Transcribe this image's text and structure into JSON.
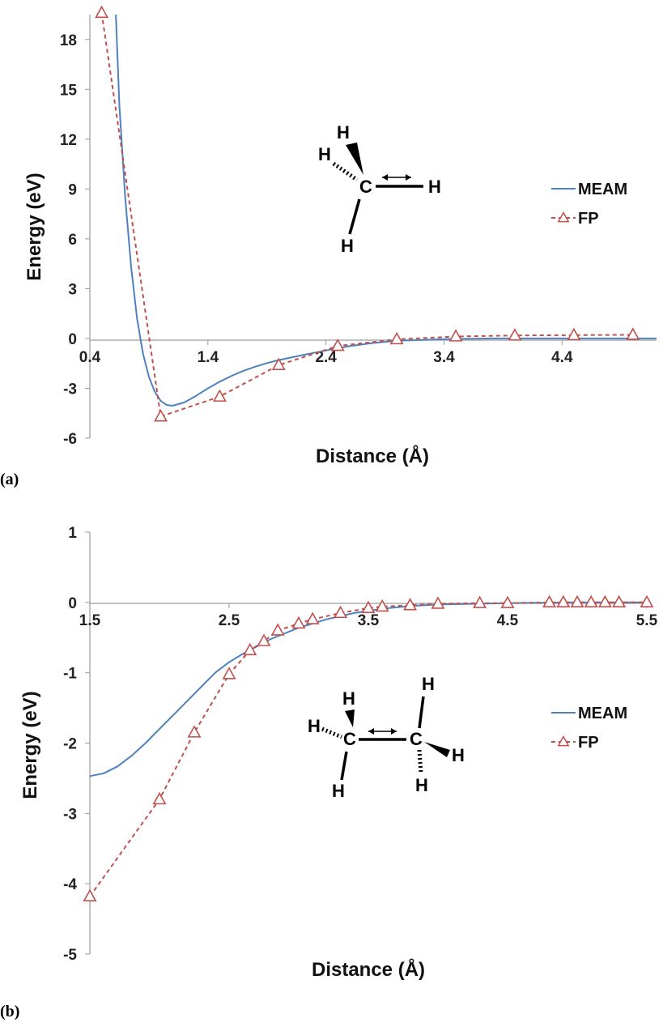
{
  "chart_data": [
    {
      "type": "line",
      "panel_label": "(a)",
      "xlabel": "Distance (Å)",
      "ylabel": "Energy (eV)",
      "xlim": [
        0.4,
        5.2
      ],
      "ylim": [
        -6,
        19.5
      ],
      "x_ticks": [
        "0.4",
        "1.4",
        "2.4",
        "3.4",
        "4.4"
      ],
      "y_ticks": [
        "-6",
        "-3",
        "0",
        "3",
        "6",
        "9",
        "12",
        "15",
        "18"
      ],
      "grid": false,
      "legend_position": "right",
      "molecule": {
        "atoms": [
          "H",
          "H",
          "C",
          "H",
          "H"
        ]
      },
      "series": [
        {
          "name": "MEAM",
          "color": "#4f81bd",
          "style": "solid",
          "x": [
            0.62,
            0.65,
            0.7,
            0.75,
            0.8,
            0.85,
            0.9,
            0.95,
            1.0,
            1.05,
            1.1,
            1.2,
            1.3,
            1.4,
            1.5,
            1.6,
            1.7,
            1.8,
            1.9,
            2.0,
            2.2,
            2.4,
            2.6,
            2.8,
            3.0,
            3.4,
            3.8,
            4.4,
            5.2
          ],
          "y": [
            19.5,
            14.0,
            8.4,
            4.3,
            1.2,
            -0.9,
            -2.3,
            -3.2,
            -3.75,
            -4.0,
            -4.05,
            -3.85,
            -3.45,
            -3.0,
            -2.6,
            -2.25,
            -1.95,
            -1.7,
            -1.48,
            -1.3,
            -1.0,
            -0.72,
            -0.46,
            -0.27,
            -0.14,
            -0.04,
            0.0,
            0.0,
            0.0
          ]
        },
        {
          "name": "FP",
          "color": "#c0504d",
          "style": "dashed",
          "marker": "triangle",
          "x": [
            0.5,
            1.0,
            1.5,
            2.0,
            2.5,
            3.0,
            3.5,
            4.0,
            4.5,
            5.0
          ],
          "y": [
            19.6,
            -4.7,
            -3.5,
            -1.6,
            -0.45,
            -0.05,
            0.12,
            0.18,
            0.2,
            0.22
          ]
        }
      ]
    },
    {
      "type": "line",
      "panel_label": "(b)",
      "xlabel": "Distance (Å)",
      "ylabel": "Energy (eV)",
      "xlim": [
        1.5,
        5.5
      ],
      "ylim": [
        -5,
        1
      ],
      "x_ticks": [
        "1.5",
        "2.5",
        "3.5",
        "4.5",
        "5.5"
      ],
      "y_ticks": [
        "-5",
        "-4",
        "-3",
        "-2",
        "-1",
        "0",
        "1"
      ],
      "grid": false,
      "legend_position": "right",
      "molecule": {
        "atoms": [
          "H",
          "H",
          "C",
          "H",
          "C",
          "H",
          "H",
          "H"
        ]
      },
      "series": [
        {
          "name": "MEAM",
          "color": "#4f81bd",
          "style": "solid",
          "x": [
            1.5,
            1.6,
            1.7,
            1.8,
            1.9,
            2.0,
            2.1,
            2.2,
            2.3,
            2.4,
            2.5,
            2.6,
            2.8,
            3.0,
            3.2,
            3.4,
            3.6,
            3.8,
            4.0,
            4.5,
            5.0,
            5.5
          ],
          "y": [
            -2.47,
            -2.43,
            -2.33,
            -2.18,
            -2.0,
            -1.8,
            -1.6,
            -1.4,
            -1.2,
            -1.0,
            -0.85,
            -0.73,
            -0.52,
            -0.36,
            -0.24,
            -0.15,
            -0.09,
            -0.05,
            -0.03,
            -0.01,
            0.0,
            0.0
          ]
        },
        {
          "name": "FP",
          "color": "#c0504d",
          "style": "dashed",
          "marker": "triangle",
          "x": [
            1.5,
            2.0,
            2.25,
            2.5,
            2.65,
            2.75,
            2.85,
            3.0,
            3.1,
            3.3,
            3.5,
            3.6,
            3.8,
            4.0,
            4.3,
            4.5,
            4.8,
            4.9,
            5.0,
            5.1,
            5.2,
            5.3,
            5.5
          ],
          "y": [
            -4.18,
            -2.8,
            -1.85,
            -1.02,
            -0.68,
            -0.55,
            -0.4,
            -0.3,
            -0.24,
            -0.15,
            -0.08,
            -0.06,
            -0.04,
            -0.02,
            -0.01,
            -0.01,
            0.0,
            0.0,
            0.0,
            0.0,
            0.0,
            0.0,
            0.0
          ]
        }
      ]
    }
  ]
}
